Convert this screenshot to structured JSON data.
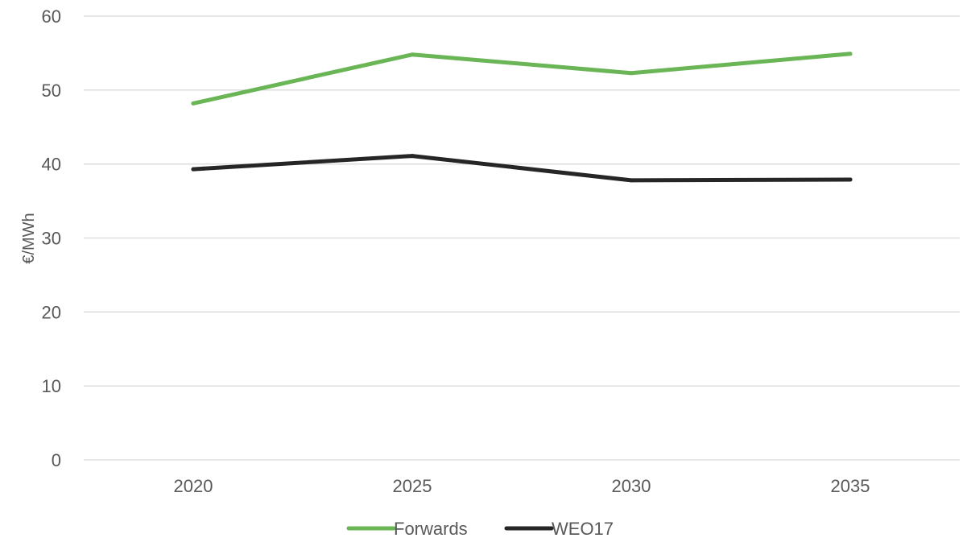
{
  "chart_data": {
    "type": "line",
    "categories": [
      "2020",
      "2025",
      "2030",
      "2035"
    ],
    "series": [
      {
        "name": "Forwards",
        "values": [
          48.2,
          54.8,
          52.3,
          54.9
        ],
        "color": "#6ab556"
      },
      {
        "name": "WEO17",
        "values": [
          39.3,
          41.1,
          37.8,
          37.9
        ],
        "color": "#262626"
      }
    ],
    "title": "",
    "xlabel": "",
    "ylabel": "€/MWh",
    "ylim": [
      0,
      60
    ],
    "yticks": [
      "0",
      "10",
      "20",
      "30",
      "40",
      "50",
      "60"
    ],
    "grid": true,
    "legend": "bottom-center"
  }
}
